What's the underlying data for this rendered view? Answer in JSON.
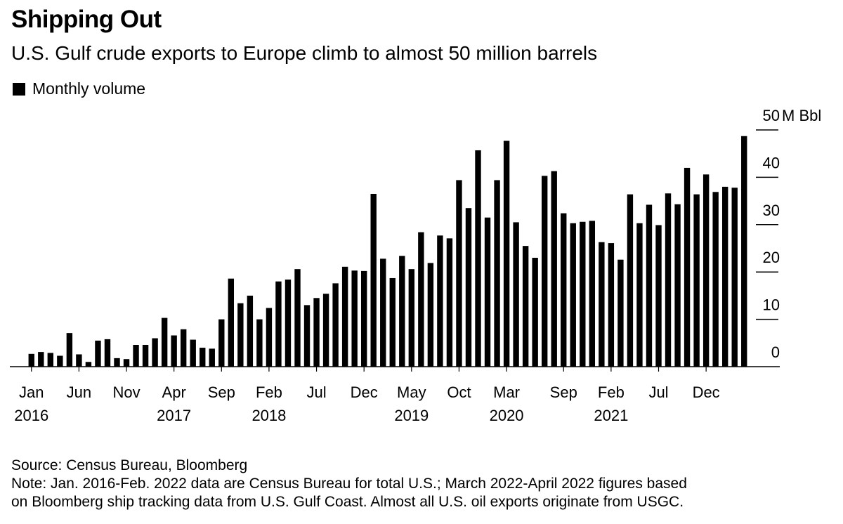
{
  "title": "Shipping Out",
  "subtitle": "U.S. Gulf crude exports to Europe climb to almost 50 million barrels",
  "legend": {
    "label": "Monthly volume",
    "color": "#000000"
  },
  "source": "Source: Census Bureau, Bloomberg",
  "note_line1": "Note: Jan. 2016-Feb. 2022 data are Census Bureau for total U.S.; March 2022-April 2022 figures based",
  "note_line2": "on Bloomberg ship tracking data from U.S. Gulf Coast. Almost all U.S. oil exports originate from USGC.",
  "chart_data": {
    "type": "bar",
    "title": "Shipping Out",
    "subtitle": "U.S. Gulf crude exports to Europe climb to almost 50 million barrels",
    "unit": "M Bbl",
    "ylim": [
      0,
      50
    ],
    "yticks": [
      0,
      10,
      20,
      30,
      40,
      50
    ],
    "ytick_labels": [
      "0",
      "10",
      "20",
      "30",
      "40",
      "50"
    ],
    "top_tick_unit_label": "M Bbl",
    "grid": false,
    "axis_side": "right",
    "xtick_labels": [
      {
        "month": "Jan",
        "year": "2016",
        "index": 0
      },
      {
        "month": "Jun",
        "year": "",
        "index": 5
      },
      {
        "month": "Nov",
        "year": "",
        "index": 10
      },
      {
        "month": "Apr",
        "year": "2017",
        "index": 15
      },
      {
        "month": "Sep",
        "year": "",
        "index": 20
      },
      {
        "month": "Feb",
        "year": "2018",
        "index": 25
      },
      {
        "month": "Jul",
        "year": "",
        "index": 30
      },
      {
        "month": "Dec",
        "year": "",
        "index": 35
      },
      {
        "month": "May",
        "year": "2019",
        "index": 40
      },
      {
        "month": "Oct",
        "year": "",
        "index": 45
      },
      {
        "month": "Mar",
        "year": "2020",
        "index": 50
      },
      {
        "month": "Sep",
        "year": "",
        "index": 56
      },
      {
        "month": "Feb",
        "year": "2021",
        "index": 61
      },
      {
        "month": "Jul",
        "year": "",
        "index": 66
      },
      {
        "month": "Dec",
        "year": "",
        "index": 71
      }
    ],
    "series": [
      {
        "name": "Monthly volume",
        "color": "#000000",
        "values": [
          2.7,
          3.1,
          2.9,
          2.3,
          7.1,
          2.6,
          1.0,
          5.5,
          5.8,
          1.8,
          1.6,
          4.6,
          4.6,
          6.0,
          10.3,
          6.6,
          7.9,
          5.7,
          4.0,
          3.8,
          10.0,
          18.6,
          13.4,
          15.0,
          10.0,
          12.4,
          18.0,
          18.4,
          20.6,
          13.0,
          14.5,
          15.4,
          17.6,
          21.1,
          20.3,
          20.2,
          36.5,
          22.8,
          18.7,
          23.4,
          20.6,
          28.4,
          21.9,
          27.7,
          27.1,
          39.4,
          33.5,
          45.7,
          31.5,
          39.4,
          47.7,
          30.5,
          25.5,
          23.0,
          40.3,
          41.3,
          32.4,
          30.3,
          30.6,
          30.8,
          26.3,
          26.1,
          22.6,
          36.4,
          30.3,
          34.2,
          29.9,
          36.6,
          34.3,
          42.0,
          36.4,
          40.6,
          36.9,
          38.0,
          37.8,
          48.7
        ]
      }
    ],
    "x_start": "2016-01",
    "x_end": "2022-04",
    "x_frequency": "monthly"
  }
}
